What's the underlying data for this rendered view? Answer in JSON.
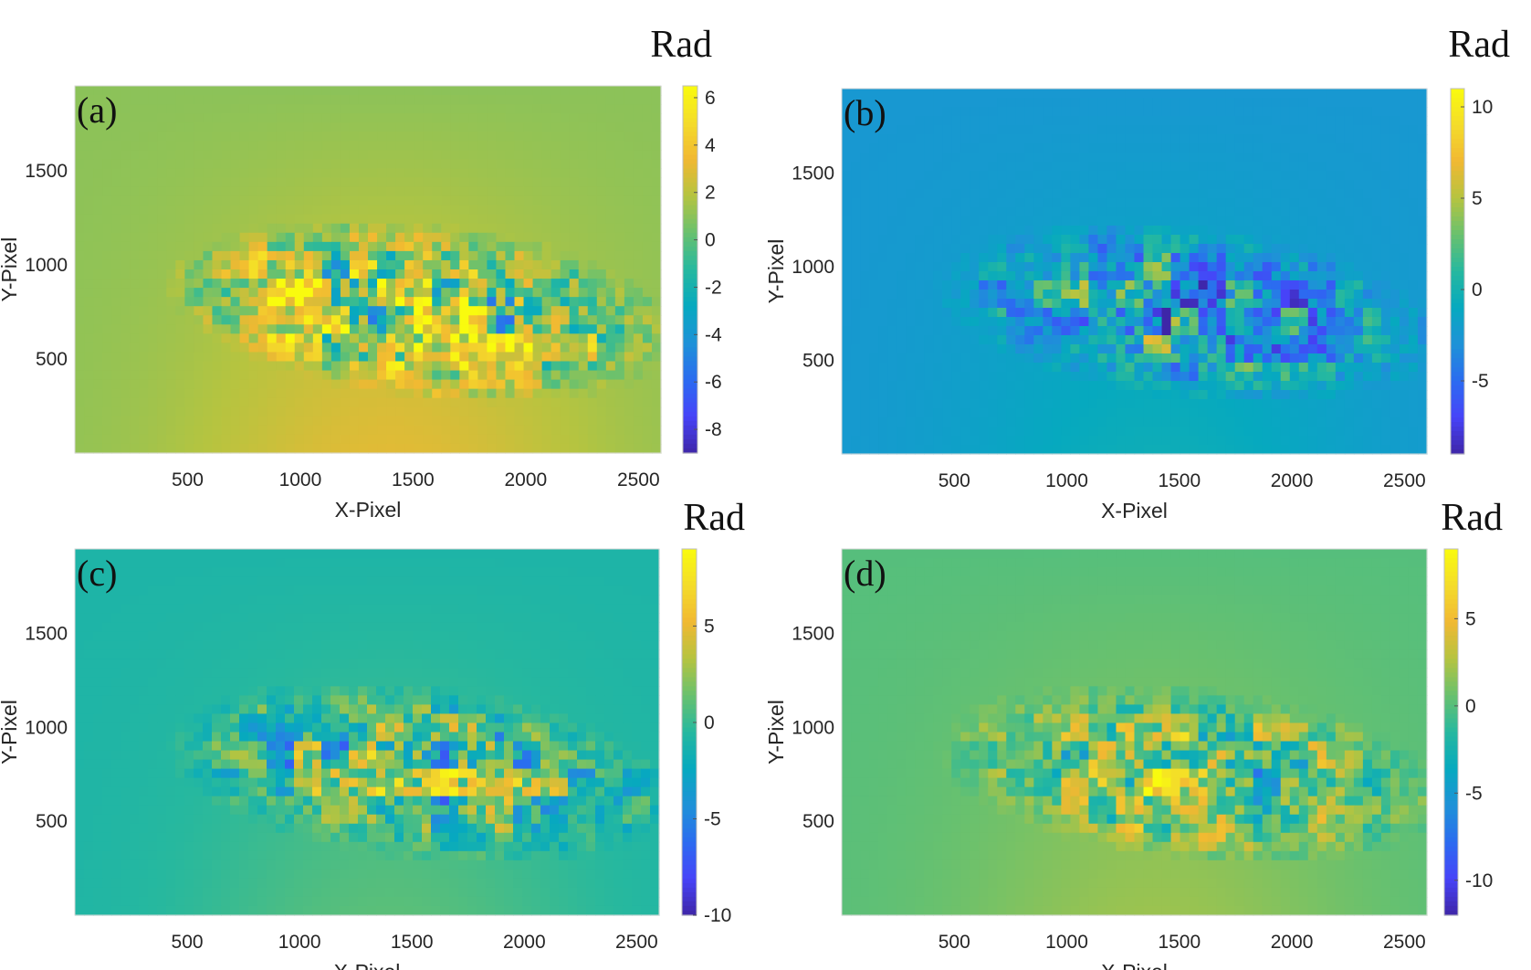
{
  "chart_data": [
    {
      "type": "heatmap",
      "panel_label": "(a)",
      "unit": "Rad",
      "xlabel": "X-Pixel",
      "ylabel": "Y-Pixel",
      "xlim": [
        0,
        2600
      ],
      "ylim": [
        0,
        1950
      ],
      "xticks": [
        500,
        1000,
        1500,
        2000,
        2500
      ],
      "yticks": [
        500,
        1000,
        1500
      ],
      "clim": [
        -9,
        6.5
      ],
      "colorbar_ticks": [
        6,
        4,
        2,
        0,
        -2,
        -4,
        -6,
        -8
      ],
      "background_value": 1.0
    },
    {
      "type": "heatmap",
      "panel_label": "(b)",
      "unit": "Rad",
      "xlabel": "X-Pixel",
      "ylabel": "Y-Pixel",
      "xlim": [
        0,
        2600
      ],
      "ylim": [
        0,
        1950
      ],
      "xticks": [
        500,
        1000,
        1500,
        2000,
        2500
      ],
      "yticks": [
        500,
        1000,
        1500
      ],
      "clim": [
        -9,
        11
      ],
      "colorbar_ticks": [
        10,
        5,
        0,
        -5
      ],
      "background_value": -2.5
    },
    {
      "type": "heatmap",
      "panel_label": "(c)",
      "unit": "Rad",
      "xlabel": "X-Pixel",
      "ylabel": "Y-Pixel",
      "xlim": [
        0,
        2600
      ],
      "ylim": [
        0,
        1950
      ],
      "xticks": [
        500,
        1000,
        1500,
        2000,
        2500
      ],
      "yticks": [
        500,
        1000,
        1500
      ],
      "clim": [
        -10,
        9
      ],
      "colorbar_ticks": [
        5,
        0,
        -5,
        -10
      ],
      "background_value": -1.0
    },
    {
      "type": "heatmap",
      "panel_label": "(d)",
      "unit": "Rad",
      "xlabel": "X-Pixel",
      "ylabel": "Y-Pixel",
      "xlim": [
        0,
        2600
      ],
      "ylim": [
        0,
        1950
      ],
      "xticks": [
        500,
        1000,
        1500,
        2000,
        2500
      ],
      "yticks": [
        500,
        1000,
        1500
      ],
      "clim": [
        -12,
        9
      ],
      "colorbar_ticks": [
        5,
        0,
        -5,
        -10
      ],
      "background_value": 0.0
    }
  ],
  "colormap": [
    "#3e26a8",
    "#4743f8",
    "#2b6cf0",
    "#1e92d7",
    "#06a9bf",
    "#26b89f",
    "#69c16e",
    "#b5c440",
    "#f1b832",
    "#f4dc2a",
    "#f9fb0e"
  ]
}
